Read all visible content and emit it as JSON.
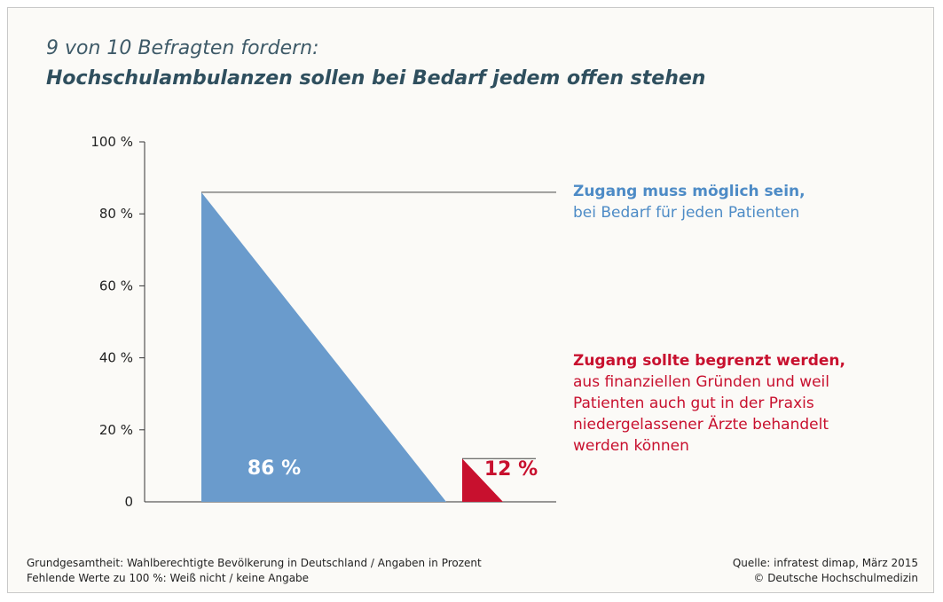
{
  "header": {
    "title": "9 von 10 Befragten fordern:",
    "subtitle": "Hochschulambulanzen sollen bei Bedarf jedem offen stehen"
  },
  "chart_data": {
    "type": "bar",
    "categories": [
      "Zugang muss möglich sein",
      "Zugang sollte begrenzt werden"
    ],
    "values": [
      86,
      12
    ],
    "data_labels": [
      "86 %",
      "12 %"
    ],
    "colors": [
      "#6a9bcc",
      "#c8102e"
    ],
    "label_colors": [
      "#ffffff",
      "#c8102e"
    ],
    "ylim": [
      0,
      100
    ],
    "yticks": [
      0,
      20,
      40,
      60,
      80,
      100
    ],
    "ytick_labels": [
      "0",
      "20 %",
      "40 %",
      "60 %",
      "80 %",
      "100 %"
    ],
    "grid": false,
    "legend_placement": "right"
  },
  "legend": {
    "yes_head": "Zugang muss möglich sein,",
    "yes_lines": [
      "bei Bedarf für jeden Patienten"
    ],
    "no_head": "Zugang sollte begrenzt werden,",
    "no_lines": [
      "aus finanziellen Gründen und weil",
      "Patienten auch gut in der Praxis",
      "niedergelassener Ärzte behandelt",
      "werden können"
    ]
  },
  "footer": {
    "left": [
      "Grundgesamtheit: Wahlberechtigte Bevölkerung in Deutschland / Angaben in Prozent",
      "Fehlende Werte zu 100 %: Weiß nicht / keine Angabe"
    ],
    "right": [
      "Quelle: infratest dimap, März 2015",
      "© Deutsche Hochschulmedizin"
    ]
  }
}
